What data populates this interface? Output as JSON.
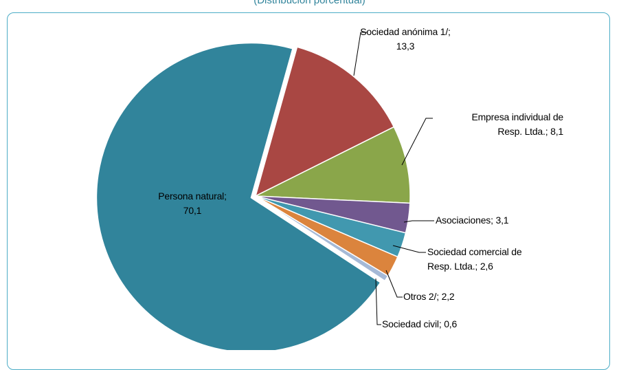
{
  "chart_data": {
    "type": "pie",
    "subtitle": "(Distribución porcentual)",
    "categories": [
      "Persona natural",
      "Sociedad anónima 1/",
      "Empresa individual de Resp. Ltda.",
      "Asociaciones",
      "Sociedad comercial de Resp. Ltda.",
      "Otros 2/",
      "Sociedad civil"
    ],
    "values": [
      70.1,
      13.3,
      8.1,
      3.1,
      2.6,
      2.2,
      0.6
    ],
    "value_labels": [
      "70,1",
      "13,3",
      "8,1",
      "3,1",
      "2,6",
      "2,2",
      "0,6"
    ],
    "label_separator": ";",
    "colors": [
      "#31849b",
      "#a94743",
      "#8aa64a",
      "#71588f",
      "#4198af",
      "#db843d",
      "#a5b9d6"
    ]
  }
}
